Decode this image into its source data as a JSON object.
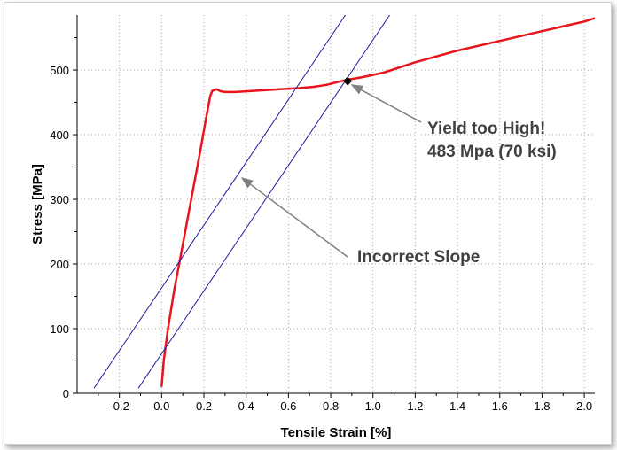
{
  "chart_data": {
    "type": "line",
    "xlabel": "Tensile Strain [%]",
    "ylabel": "Stress [MPa]",
    "xlim": [
      -0.4,
      2.05
    ],
    "ylim": [
      0,
      585
    ],
    "x_ticks": [
      -0.2,
      0.0,
      0.2,
      0.4,
      0.6,
      0.8,
      1.0,
      1.2,
      1.4,
      1.6,
      1.8,
      2.0
    ],
    "x_tick_labels": [
      "-0.2",
      "0.0",
      "0.2",
      "0.4",
      "0.6",
      "0.8",
      "1.0",
      "1.2",
      "1.4",
      "1.6",
      "1.8",
      "2.0"
    ],
    "y_ticks": [
      0,
      100,
      200,
      300,
      400,
      500
    ],
    "y_tick_labels": [
      "0",
      "100",
      "200",
      "300",
      "400",
      "500"
    ],
    "grid": true,
    "colors": {
      "curve": "#e8141c",
      "offset_lines": "#1c1ca0",
      "annotation_text": "#404040",
      "arrow": "#808080",
      "marker": "#000000"
    },
    "series": [
      {
        "kind": "curve",
        "x": [
          0.0,
          0.01,
          0.03,
          0.06,
          0.1,
          0.14,
          0.18,
          0.21,
          0.23,
          0.24,
          0.26,
          0.28,
          0.3,
          0.35,
          0.45,
          0.55,
          0.65,
          0.72,
          0.78,
          0.84,
          0.88,
          0.95,
          1.05,
          1.2,
          1.4,
          1.6,
          1.8,
          2.0,
          2.05
        ],
        "y": [
          10,
          50,
          100,
          160,
          230,
          300,
          370,
          425,
          460,
          468,
          470,
          467,
          466,
          466,
          468,
          470,
          472,
          474,
          477,
          482,
          485,
          489,
          496,
          512,
          530,
          545,
          560,
          575,
          580
        ]
      },
      {
        "kind": "line",
        "x": [
          -0.32,
          0.9
        ],
        "y": [
          8,
          600
        ]
      },
      {
        "kind": "line",
        "x": [
          -0.11,
          1.11
        ],
        "y": [
          8,
          600
        ]
      }
    ],
    "marker": {
      "x": 0.88,
      "y": 483
    },
    "annotations": [
      {
        "lines": [
          "Yield too High!",
          "483 Mpa (70 ksi)"
        ],
        "arrow_to": {
          "x": 0.9,
          "y": 477
        }
      },
      {
        "lines": [
          "Incorrect Slope"
        ],
        "arrow_to": {
          "x": 0.38,
          "y": 333
        }
      }
    ]
  }
}
